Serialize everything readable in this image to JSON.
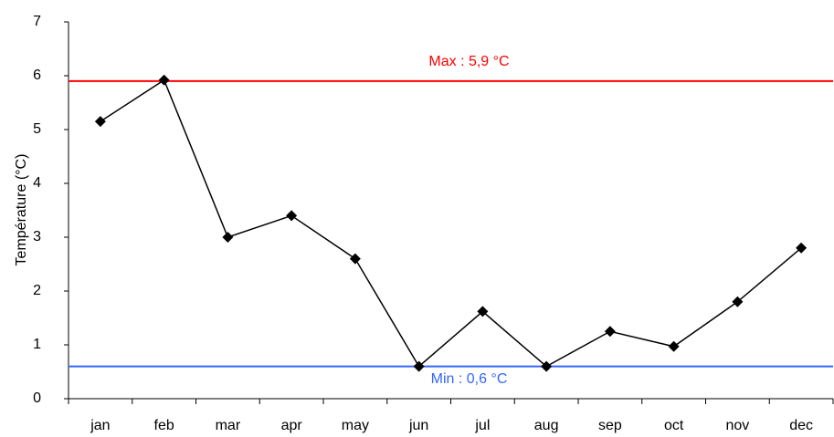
{
  "chart_data": {
    "type": "line",
    "y_label": "Température (°C)",
    "categories": [
      "jan",
      "feb",
      "mar",
      "apr",
      "may",
      "jun",
      "jul",
      "aug",
      "sep",
      "oct",
      "nov",
      "dec"
    ],
    "series": [
      {
        "name": "Température",
        "color": "#000000",
        "values": [
          5.15,
          5.92,
          3.0,
          3.4,
          2.6,
          0.6,
          1.62,
          0.6,
          1.25,
          0.97,
          1.8,
          2.8
        ]
      }
    ],
    "ylim": [
      0,
      7
    ],
    "yticks": [
      0,
      1,
      2,
      3,
      4,
      5,
      6,
      7
    ],
    "grid": false,
    "reference_lines": [
      {
        "value": 5.9,
        "label": "Max : 5,9 °C",
        "color": "#ff0000",
        "label_side": "above"
      },
      {
        "value": 0.6,
        "label": "Min : 0,6 °C",
        "color": "#3366ff",
        "label_side": "below"
      }
    ]
  }
}
